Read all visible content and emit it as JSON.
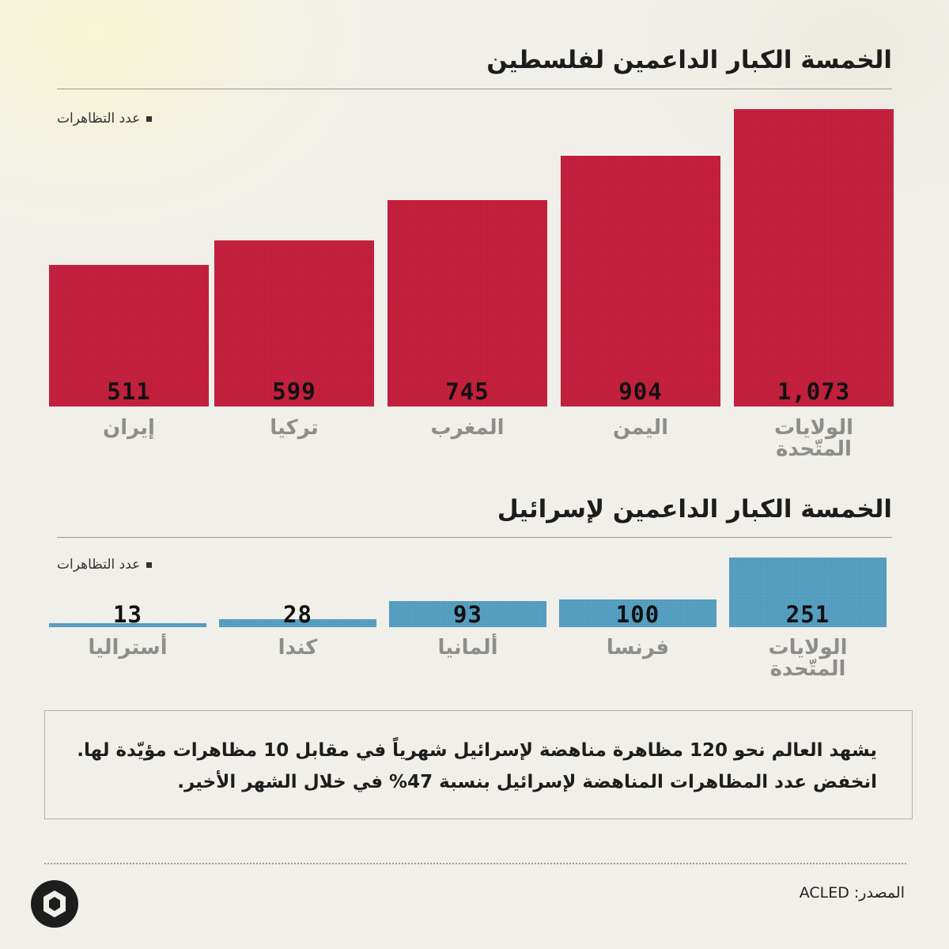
{
  "legend_label": "عدد التظاهرات",
  "colors": {
    "palestine_bars": "#c8213f",
    "israel_bars": "#58a3c6",
    "background": "#f1efea"
  },
  "chart_data": [
    {
      "type": "bar",
      "title": "الخمسة الكبار الداعمين لفلسطين",
      "legend": "عدد التظاهرات",
      "categories": [
        "الولايات المتّحدة",
        "اليمن",
        "المغرب",
        "تركيا",
        "إيران"
      ],
      "values": [
        1073,
        904,
        745,
        599,
        511
      ],
      "value_labels": [
        "1,073",
        "904",
        "745",
        "599",
        "511"
      ],
      "ylim": [
        0,
        1073
      ],
      "grid": false,
      "legend_position": "top-left"
    },
    {
      "type": "bar",
      "title": "الخمسة الكبار الداعمين لإسرائيل",
      "legend": "عدد التظاهرات",
      "categories": [
        "الولايات المتّحدة",
        "فرنسا",
        "ألمانيا",
        "كندا",
        "أستراليا"
      ],
      "values": [
        251,
        100,
        93,
        28,
        13
      ],
      "value_labels": [
        "251",
        "100",
        "93",
        "28",
        "13"
      ],
      "ylim": [
        0,
        251
      ],
      "grid": false,
      "legend_position": "top-left"
    }
  ],
  "note": {
    "line1": "يشهد العالم نحو 120 مظاهرة مناهضة لإسرائيل شهرياً في مقابل 10 مظاهرات مؤيّدة لها.",
    "line2": "انخفض عدد المظاهرات المناهضة لإسرائيل بنسبة 47% في خلال الشهر الأخير."
  },
  "source": {
    "label": "المصدر:",
    "value": "ACLED"
  },
  "logo_icon": "circle-diamond-logo-icon"
}
